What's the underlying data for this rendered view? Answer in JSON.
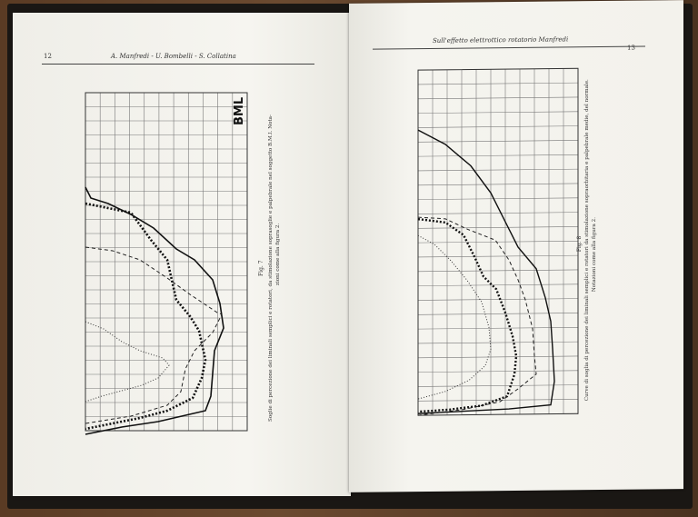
{
  "left_page": {
    "page_number": "12",
    "running_head": "A. Manfredi - U. Bombelli - S. Collatina",
    "figure_label": "Fig. 7",
    "caption_line1": "Soglie di percezione dei liminali semplici e rotatori, da stimolazione soprasoglie e palpebrale nel soggetto B.M.I. Nota-",
    "caption_line2": "zioni come alla figura 2.",
    "stamp": "BML"
  },
  "right_page": {
    "page_number": "13",
    "running_head": "Sull'effetto elettrottico rotatorio Manfredi",
    "figure_label": "Fig. 8",
    "caption_line1": "Curve di soglia di percezione dei liminali semplici e rotatori da stimolazione sopraorbitaria e palpebrale medie, del normale.",
    "caption_line2": "Notazioni come alla figura 2."
  }
}
